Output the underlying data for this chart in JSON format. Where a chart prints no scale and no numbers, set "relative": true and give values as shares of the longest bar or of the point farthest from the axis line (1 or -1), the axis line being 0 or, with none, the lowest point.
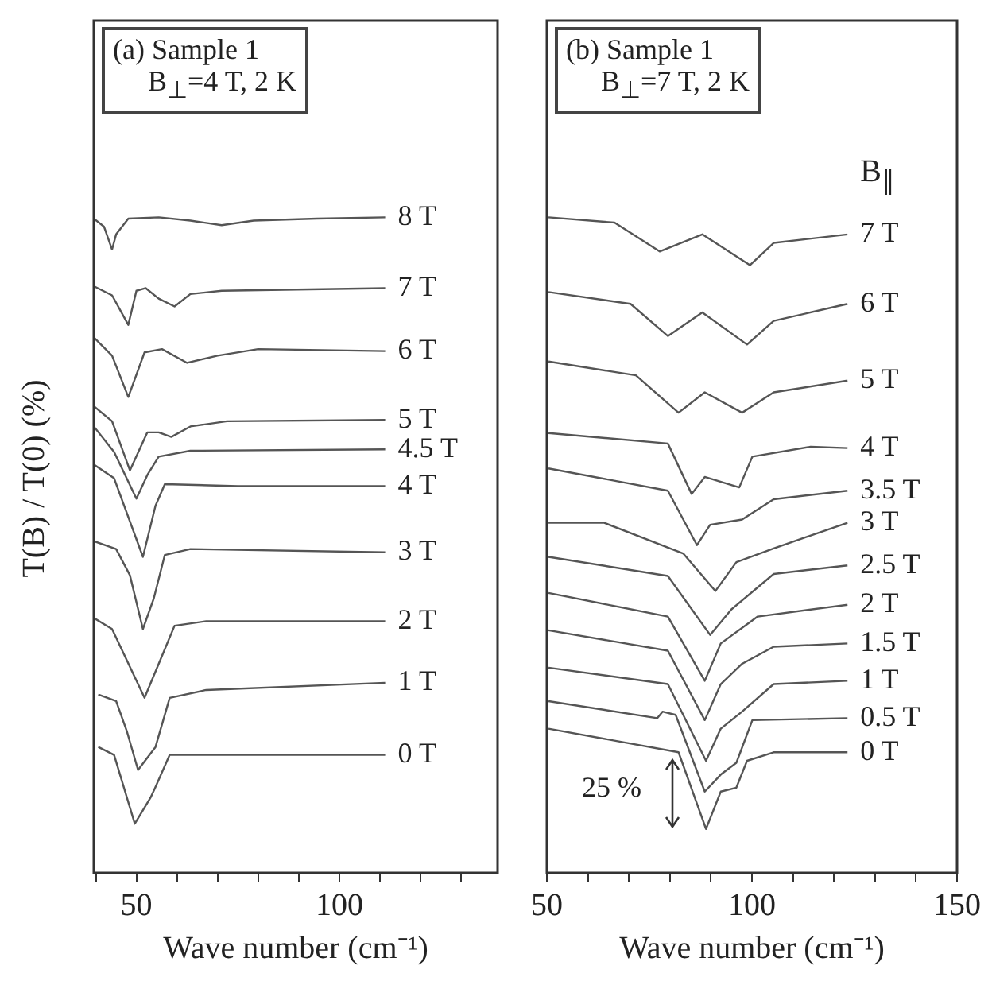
{
  "chart_data": [
    {
      "type": "line",
      "title": "(a) Sample 1",
      "subtitle": "B$_{⊥}$=4 T, 2 K",
      "xlabel": "Wave number (cm⁻¹)",
      "ylabel": "T(B) / T(0) (%)",
      "relative": true,
      "color": "#555555",
      "tick_labels": "x",
      "xlim": [
        39.5,
        139
      ],
      "xticks": [
        {
          "value": 40,
          "label": null
        },
        50,
        {
          "value": 60,
          "label": null
        },
        {
          "value": 70,
          "label": null
        },
        {
          "value": 80,
          "label": null
        },
        {
          "value": 90,
          "label": null
        },
        100,
        {
          "value": 110,
          "label": null
        },
        {
          "value": 120,
          "label": null
        },
        {
          "value": 130,
          "label": null
        }
      ],
      "series": [
        {
          "name": "8 T",
          "x": [
            39.5,
            42,
            44,
            45,
            48,
            55.5,
            63.3,
            71,
            78.9,
            94.5,
            111.3
          ],
          "values": [
            0.998,
            0.986,
            0.951,
            0.974,
            0.998,
            1.0,
            0.995,
            0.988,
            0.995,
            0.998,
            1.0
          ]
        },
        {
          "name": "7 T",
          "x": [
            39.5,
            44,
            48,
            50,
            52.3,
            55.5,
            59.4,
            63.3,
            71,
            111.3
          ],
          "values": [
            0.895,
            0.881,
            0.836,
            0.888,
            0.892,
            0.876,
            0.864,
            0.883,
            0.888,
            0.892
          ]
        },
        {
          "name": "6 T",
          "x": [
            39.5,
            44,
            48,
            52,
            56.3,
            62.5,
            70,
            80,
            111.3
          ],
          "values": [
            0.817,
            0.789,
            0.726,
            0.794,
            0.799,
            0.778,
            0.789,
            0.799,
            0.796
          ]
        },
        {
          "name": "5 T",
          "x": [
            39.5,
            44,
            48.4,
            52.7,
            55.5,
            58.6,
            63.3,
            72.3,
            111.3
          ],
          "values": [
            0.712,
            0.689,
            0.614,
            0.672,
            0.672,
            0.665,
            0.681,
            0.689,
            0.691
          ]
        },
        {
          "name": "4.5 T",
          "x": [
            39.5,
            44.5,
            50,
            52.7,
            55.5,
            63.3,
            111.3
          ],
          "values": [
            0.681,
            0.642,
            0.571,
            0.607,
            0.635,
            0.644,
            0.646
          ]
        },
        {
          "name": "4 T",
          "x": [
            39.5,
            44.5,
            51.6,
            54.7,
            57,
            75,
            111.3
          ],
          "values": [
            0.623,
            0.602,
            0.482,
            0.56,
            0.593,
            0.59,
            0.59
          ]
        },
        {
          "name": "3 T",
          "x": [
            39.5,
            45,
            48.4,
            51.6,
            54.3,
            57,
            63.3,
            111.3
          ],
          "values": [
            0.506,
            0.494,
            0.454,
            0.372,
            0.419,
            0.485,
            0.494,
            0.489
          ]
        },
        {
          "name": "2 T",
          "x": [
            39.5,
            44,
            52,
            55.5,
            59.4,
            67.2,
            111.3
          ],
          "values": [
            0.389,
            0.372,
            0.267,
            0.319,
            0.377,
            0.384,
            0.384
          ]
        },
        {
          "name": "1 T",
          "x": [
            40.6,
            45,
            47.7,
            50.4,
            54.7,
            58.2,
            67.2,
            111.3
          ],
          "values": [
            0.272,
            0.262,
            0.215,
            0.157,
            0.192,
            0.267,
            0.279,
            0.29
          ]
        },
        {
          "name": "0 T",
          "x": [
            40.6,
            44.5,
            49.6,
            53.5,
            54.7,
            58.2,
            111.3
          ],
          "values": [
            0.192,
            0.18,
            0.075,
            0.115,
            0.131,
            0.18,
            0.18
          ]
        }
      ]
    },
    {
      "type": "line",
      "title": "(b) Sample 1",
      "subtitle": "B$_{⊥}$=7 T, 2 K",
      "xlabel": "Wave number (cm⁻¹)",
      "legend_title": "B$_{∥}$",
      "annotations": [
        "25 %"
      ],
      "relative": true,
      "color": "#555555",
      "tick_labels": "x",
      "xlim": [
        50,
        150
      ],
      "xticks": [
        50,
        {
          "value": 60,
          "label": null
        },
        {
          "value": 70,
          "label": null
        },
        {
          "value": 80,
          "label": null
        },
        {
          "value": 90,
          "label": null
        },
        100,
        {
          "value": 110,
          "label": null
        },
        {
          "value": 120,
          "label": null
        },
        {
          "value": 130,
          "label": null
        },
        {
          "value": 140,
          "label": null
        },
        150
      ],
      "series": [
        {
          "name": "7 T",
          "x": [
            50.4,
            66.5,
            77.5,
            87.9,
            99.5,
            105.3,
            123.3
          ],
          "values": [
            1.0,
            0.992,
            0.948,
            0.974,
            0.927,
            0.961,
            0.974
          ]
        },
        {
          "name": "6 T",
          "x": [
            50.4,
            70.4,
            79.5,
            87.9,
            98.8,
            105.3,
            123.3
          ],
          "values": [
            0.886,
            0.868,
            0.819,
            0.855,
            0.806,
            0.842,
            0.868
          ]
        },
        {
          "name": "5 T",
          "x": [
            50.4,
            71.7,
            82.1,
            88.5,
            97.6,
            105.3,
            123.3
          ],
          "values": [
            0.78,
            0.759,
            0.702,
            0.733,
            0.702,
            0.733,
            0.751
          ]
        },
        {
          "name": "4 T",
          "x": [
            50.4,
            79.5,
            85.3,
            88.5,
            96.9,
            100.1,
            114.3,
            123.3
          ],
          "values": [
            0.671,
            0.655,
            0.578,
            0.604,
            0.588,
            0.635,
            0.65,
            0.648
          ]
        },
        {
          "name": "3.5 T",
          "x": [
            50.4,
            79.5,
            86.6,
            89.8,
            97.6,
            105.3,
            123.3
          ],
          "values": [
            0.617,
            0.583,
            0.5,
            0.531,
            0.539,
            0.57,
            0.583
          ]
        },
        {
          "name": "3 T",
          "x": [
            50.4,
            64,
            83.3,
            91.1,
            96.2,
            105.3,
            123.3
          ],
          "values": [
            0.534,
            0.534,
            0.487,
            0.43,
            0.474,
            0.495,
            0.534
          ]
        },
        {
          "name": "2.5 T",
          "x": [
            50.4,
            79.5,
            89.8,
            95,
            105.3,
            123.3
          ],
          "values": [
            0.482,
            0.453,
            0.363,
            0.402,
            0.456,
            0.469
          ]
        },
        {
          "name": "2 T",
          "x": [
            50.4,
            79.5,
            88.5,
            92.4,
            101.4,
            123.3
          ],
          "values": [
            0.427,
            0.391,
            0.293,
            0.35,
            0.391,
            0.409
          ]
        },
        {
          "name": "1.5 T",
          "x": [
            50.4,
            79.5,
            88.5,
            92.4,
            97.6,
            105.3,
            123.3
          ],
          "values": [
            0.37,
            0.339,
            0.233,
            0.288,
            0.319,
            0.345,
            0.35
          ]
        },
        {
          "name": "1 T",
          "x": [
            50.4,
            79.5,
            88.8,
            92.4,
            97.6,
            105.3,
            123.3
          ],
          "values": [
            0.313,
            0.288,
            0.171,
            0.22,
            0.246,
            0.288,
            0.293
          ]
        },
        {
          "name": "0.5 T",
          "x": [
            50.4,
            76.9,
            78.2,
            81.4,
            88.5,
            92.4,
            96.2,
            100.1,
            123.3
          ],
          "values": [
            0.262,
            0.236,
            0.246,
            0.241,
            0.124,
            0.15,
            0.168,
            0.233,
            0.236
          ]
        },
        {
          "name": "0 T",
          "x": [
            50.4,
            82.1,
            88.8,
            92.4,
            96.2,
            98.8,
            105.3,
            123.3
          ],
          "values": [
            0.22,
            0.184,
            0.067,
            0.124,
            0.13,
            0.171,
            0.184,
            0.184
          ]
        }
      ]
    }
  ]
}
